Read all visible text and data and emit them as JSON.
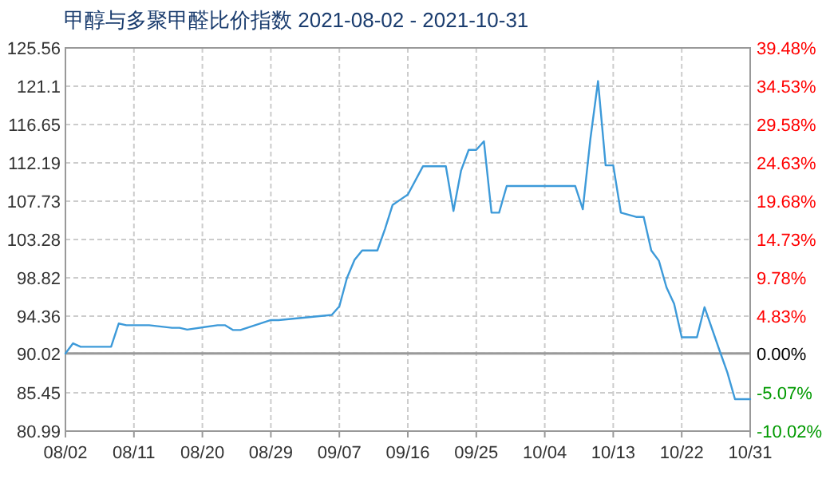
{
  "chart_data": {
    "type": "line",
    "title": "甲醇与多聚甲醛比价指数 2021-08-02 - 2021-10-31",
    "x": [
      "2021-08-02",
      "2021-08-03",
      "2021-08-04",
      "2021-08-08",
      "2021-08-09",
      "2021-08-10",
      "2021-08-13",
      "2021-08-16",
      "2021-08-17",
      "2021-08-18",
      "2021-08-22",
      "2021-08-23",
      "2021-08-24",
      "2021-08-25",
      "2021-08-29",
      "2021-08-30",
      "2021-09-06",
      "2021-09-07",
      "2021-09-08",
      "2021-09-09",
      "2021-09-10",
      "2021-09-12",
      "2021-09-13",
      "2021-09-14",
      "2021-09-16",
      "2021-09-18",
      "2021-09-21",
      "2021-09-22",
      "2021-09-23",
      "2021-09-24",
      "2021-09-25",
      "2021-09-26",
      "2021-09-27",
      "2021-09-28",
      "2021-09-29",
      "2021-10-08",
      "2021-10-09",
      "2021-10-10",
      "2021-10-11",
      "2021-10-12",
      "2021-10-13",
      "2021-10-14",
      "2021-10-16",
      "2021-10-17",
      "2021-10-18",
      "2021-10-19",
      "2021-10-20",
      "2021-10-21",
      "2021-10-22",
      "2021-10-24",
      "2021-10-25",
      "2021-10-27",
      "2021-10-28",
      "2021-10-29",
      "2021-10-31"
    ],
    "series": [
      {
        "color": "#3d9ad9",
        "values": [
          90.02,
          91.2,
          90.8,
          90.8,
          93.5,
          93.3,
          93.3,
          93.0,
          93.0,
          92.8,
          93.3,
          93.3,
          92.75,
          92.75,
          93.9,
          93.9,
          94.5,
          95.5,
          98.8,
          100.9,
          102.0,
          102.0,
          104.5,
          107.3,
          108.5,
          111.8,
          111.8,
          106.6,
          111.3,
          113.7,
          113.7,
          114.7,
          106.4,
          106.4,
          109.5,
          109.5,
          106.8,
          115.0,
          121.7,
          111.9,
          111.9,
          106.4,
          105.9,
          105.9,
          102.0,
          100.8,
          97.7,
          95.8,
          91.9,
          91.9,
          95.4,
          90.3,
          87.8,
          84.7,
          84.7
        ]
      }
    ],
    "xlim": [
      "2021-08-02",
      "2021-10-31"
    ],
    "xticks": [
      {
        "value": "2021-08-02",
        "label": "08/02"
      },
      {
        "value": "2021-08-11",
        "label": "08/11"
      },
      {
        "value": "2021-08-20",
        "label": "08/20"
      },
      {
        "value": "2021-08-29",
        "label": "08/29"
      },
      {
        "value": "2021-09-07",
        "label": "09/07"
      },
      {
        "value": "2021-09-16",
        "label": "09/16"
      },
      {
        "value": "2021-09-25",
        "label": "09/25"
      },
      {
        "value": "2021-10-04",
        "label": "10/04"
      },
      {
        "value": "2021-10-13",
        "label": "10/13"
      },
      {
        "value": "2021-10-22",
        "label": "10/22"
      },
      {
        "value": "2021-10-31",
        "label": "10/31"
      }
    ],
    "ylim": [
      80.99,
      125.56
    ],
    "yticks": [
      80.99,
      85.45,
      90.02,
      94.36,
      98.82,
      103.28,
      107.73,
      112.19,
      116.65,
      121.1,
      125.56
    ],
    "y2lim": [
      -10.02,
      39.48
    ],
    "y2ticks": [
      {
        "value": -10.02,
        "label": "-10.02%"
      },
      {
        "value": -5.07,
        "label": "-5.07%"
      },
      {
        "value": 0,
        "label": "0.00%"
      },
      {
        "value": 4.83,
        "label": "4.83%"
      },
      {
        "value": 9.78,
        "label": "9.78%"
      },
      {
        "value": 14.73,
        "label": "14.73%"
      },
      {
        "value": 19.68,
        "label": "19.68%"
      },
      {
        "value": 24.63,
        "label": "24.63%"
      },
      {
        "value": 29.58,
        "label": "29.58%"
      },
      {
        "value": 34.53,
        "label": "34.53%"
      },
      {
        "value": 39.48,
        "label": "39.48%"
      }
    ],
    "ref_lines": [
      {
        "axis": "y2",
        "value": 0,
        "color": "#999999"
      }
    ],
    "grid": true,
    "marker": "none",
    "line_style": "solid"
  }
}
